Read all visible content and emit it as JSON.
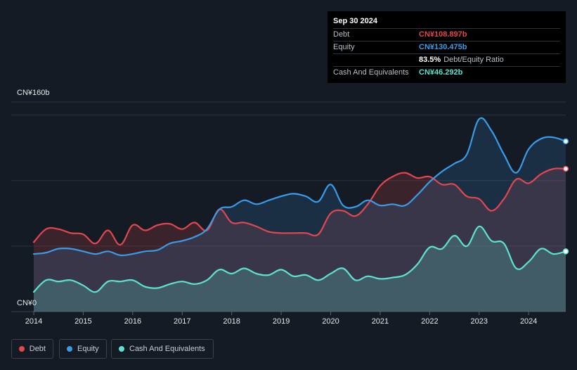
{
  "tooltip": {
    "date": "Sep 30 2024",
    "rows": [
      {
        "label": "Debt",
        "value": "CN¥108.897b",
        "color": "#e2474f"
      },
      {
        "label": "Equity",
        "value": "CN¥130.475b",
        "color": "#3a9ce8"
      },
      {
        "label": "",
        "value": "83.5%",
        "extra": "Debt/Equity Ratio",
        "color": "#ffffff"
      },
      {
        "label": "Cash And Equivalents",
        "value": "CN¥46.292b",
        "color": "#5ee2d0"
      }
    ]
  },
  "legend": [
    {
      "label": "Debt",
      "color": "#e2474f"
    },
    {
      "label": "Equity",
      "color": "#3a9ce8"
    },
    {
      "label": "Cash And Equivalents",
      "color": "#5ee2d0"
    }
  ],
  "chart_data": {
    "type": "area",
    "ylabel_top": "CN¥160b",
    "ylabel_bottom": "CN¥0",
    "ylim": [
      0,
      160
    ],
    "xlim": [
      2014.0,
      2024.75
    ],
    "xticks": [
      "2014",
      "2015",
      "2016",
      "2017",
      "2018",
      "2019",
      "2020",
      "2021",
      "2022",
      "2023",
      "2024"
    ],
    "grid": true,
    "series": [
      {
        "name": "Debt",
        "color": "#e2474f",
        "points": [
          [
            2014.0,
            53
          ],
          [
            2014.25,
            63
          ],
          [
            2014.5,
            63
          ],
          [
            2014.75,
            60
          ],
          [
            2015.0,
            59
          ],
          [
            2015.25,
            52
          ],
          [
            2015.5,
            62
          ],
          [
            2015.75,
            51
          ],
          [
            2016.0,
            66
          ],
          [
            2016.25,
            62
          ],
          [
            2016.5,
            66
          ],
          [
            2016.75,
            67
          ],
          [
            2017.0,
            63
          ],
          [
            2017.25,
            68
          ],
          [
            2017.5,
            62
          ],
          [
            2017.75,
            78
          ],
          [
            2018.0,
            68
          ],
          [
            2018.25,
            68
          ],
          [
            2018.5,
            65
          ],
          [
            2018.75,
            61
          ],
          [
            2019.0,
            60
          ],
          [
            2019.25,
            60
          ],
          [
            2019.5,
            60
          ],
          [
            2019.75,
            59
          ],
          [
            2020.0,
            75
          ],
          [
            2020.25,
            77
          ],
          [
            2020.5,
            73
          ],
          [
            2020.75,
            82
          ],
          [
            2021.0,
            96
          ],
          [
            2021.25,
            103
          ],
          [
            2021.5,
            106
          ],
          [
            2021.75,
            102
          ],
          [
            2022.0,
            103
          ],
          [
            2022.25,
            97
          ],
          [
            2022.5,
            97
          ],
          [
            2022.75,
            88
          ],
          [
            2023.0,
            86
          ],
          [
            2023.25,
            77
          ],
          [
            2023.5,
            86
          ],
          [
            2023.75,
            101
          ],
          [
            2024.0,
            98
          ],
          [
            2024.25,
            105
          ],
          [
            2024.5,
            109
          ],
          [
            2024.75,
            109
          ]
        ]
      },
      {
        "name": "Equity",
        "color": "#3a9ce8",
        "points": [
          [
            2014.0,
            44
          ],
          [
            2014.25,
            45
          ],
          [
            2014.5,
            48
          ],
          [
            2014.75,
            48
          ],
          [
            2015.0,
            46
          ],
          [
            2015.25,
            44
          ],
          [
            2015.5,
            46
          ],
          [
            2015.75,
            43
          ],
          [
            2016.0,
            44
          ],
          [
            2016.25,
            46
          ],
          [
            2016.5,
            47
          ],
          [
            2016.75,
            52
          ],
          [
            2017.0,
            54
          ],
          [
            2017.25,
            57
          ],
          [
            2017.5,
            63
          ],
          [
            2017.75,
            78
          ],
          [
            2018.0,
            80
          ],
          [
            2018.25,
            85
          ],
          [
            2018.5,
            82
          ],
          [
            2018.75,
            85
          ],
          [
            2019.0,
            88
          ],
          [
            2019.25,
            90
          ],
          [
            2019.5,
            88
          ],
          [
            2019.75,
            84
          ],
          [
            2020.0,
            97
          ],
          [
            2020.25,
            81
          ],
          [
            2020.5,
            80
          ],
          [
            2020.75,
            85
          ],
          [
            2021.0,
            81
          ],
          [
            2021.25,
            82
          ],
          [
            2021.5,
            81
          ],
          [
            2021.75,
            89
          ],
          [
            2022.0,
            99
          ],
          [
            2022.25,
            107
          ],
          [
            2022.5,
            113
          ],
          [
            2022.75,
            120
          ],
          [
            2023.0,
            147
          ],
          [
            2023.25,
            138
          ],
          [
            2023.5,
            120
          ],
          [
            2023.75,
            106
          ],
          [
            2024.0,
            124
          ],
          [
            2024.25,
            132
          ],
          [
            2024.5,
            133
          ],
          [
            2024.75,
            130
          ]
        ]
      },
      {
        "name": "Cash And Equivalents",
        "color": "#5ee2d0",
        "points": [
          [
            2014.0,
            15
          ],
          [
            2014.25,
            24
          ],
          [
            2014.5,
            23
          ],
          [
            2014.75,
            24
          ],
          [
            2015.0,
            20
          ],
          [
            2015.25,
            15
          ],
          [
            2015.5,
            23
          ],
          [
            2015.75,
            23
          ],
          [
            2016.0,
            24
          ],
          [
            2016.25,
            19
          ],
          [
            2016.5,
            18
          ],
          [
            2016.75,
            21
          ],
          [
            2017.0,
            23
          ],
          [
            2017.25,
            21
          ],
          [
            2017.5,
            24
          ],
          [
            2017.75,
            32
          ],
          [
            2018.0,
            29
          ],
          [
            2018.25,
            33
          ],
          [
            2018.5,
            29
          ],
          [
            2018.75,
            28
          ],
          [
            2019.0,
            32
          ],
          [
            2019.25,
            27
          ],
          [
            2019.5,
            28
          ],
          [
            2019.75,
            24
          ],
          [
            2020.0,
            29
          ],
          [
            2020.25,
            33
          ],
          [
            2020.5,
            24
          ],
          [
            2020.75,
            27
          ],
          [
            2021.0,
            25
          ],
          [
            2021.25,
            26
          ],
          [
            2021.5,
            28
          ],
          [
            2021.75,
            36
          ],
          [
            2022.0,
            49
          ],
          [
            2022.25,
            48
          ],
          [
            2022.5,
            58
          ],
          [
            2022.75,
            50
          ],
          [
            2023.0,
            65
          ],
          [
            2023.25,
            54
          ],
          [
            2023.5,
            52
          ],
          [
            2023.75,
            33
          ],
          [
            2024.0,
            38
          ],
          [
            2024.25,
            48
          ],
          [
            2024.5,
            44
          ],
          [
            2024.75,
            46
          ]
        ]
      }
    ]
  }
}
